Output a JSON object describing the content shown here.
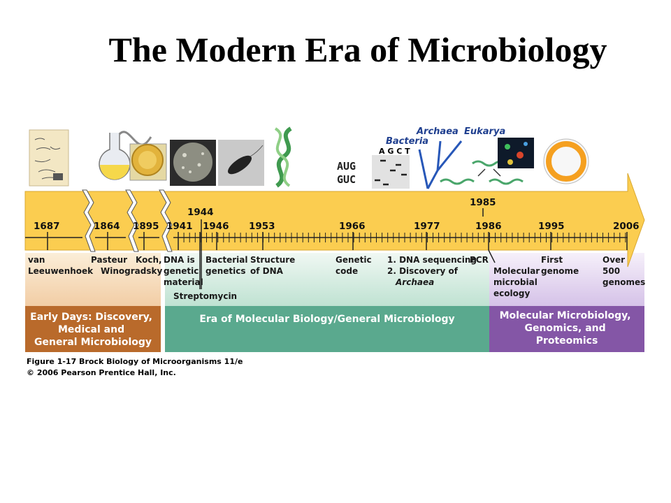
{
  "title": "The Modern Era of Microbiology",
  "colors": {
    "arrow": "#fbcd50",
    "early_era": "#b96a2b",
    "molecular_era": "#5aa98e",
    "genomics_era": "#8456a6",
    "phylo_tree": "#2757b8"
  },
  "timeline": {
    "years": [
      {
        "id": "1687",
        "label": "1687"
      },
      {
        "id": "1864",
        "label": "1864"
      },
      {
        "id": "1895",
        "label": "1895"
      },
      {
        "id": "1941",
        "label": "1941"
      },
      {
        "id": "1944",
        "label": "1944"
      },
      {
        "id": "1946",
        "label": "1946"
      },
      {
        "id": "1953",
        "label": "1953"
      },
      {
        "id": "1966",
        "label": "1966"
      },
      {
        "id": "1977",
        "label": "1977"
      },
      {
        "id": "1985",
        "label": "1985"
      },
      {
        "id": "1986",
        "label": "1986"
      },
      {
        "id": "1995",
        "label": "1995"
      },
      {
        "id": "2006",
        "label": "2006"
      }
    ],
    "events": [
      {
        "id": "van-leeuwenhoek",
        "lines": [
          "van",
          "Leeuwenhoek"
        ]
      },
      {
        "id": "pasteur-winogradsky",
        "lines": [
          "Pasteur",
          "Winogradsky"
        ]
      },
      {
        "id": "koch",
        "lines": [
          "Koch,"
        ]
      },
      {
        "id": "dna-genetic-material",
        "lines": [
          "DNA is",
          "genetic",
          "material"
        ]
      },
      {
        "id": "streptomycin",
        "lines": [
          "Streptomycin"
        ]
      },
      {
        "id": "bacterial-genetics",
        "lines": [
          "Bacterial",
          "genetics"
        ]
      },
      {
        "id": "structure-of-dna",
        "lines": [
          "Structure",
          "of DNA"
        ]
      },
      {
        "id": "genetic-code",
        "lines": [
          "Genetic",
          "code"
        ]
      },
      {
        "id": "dna-sequencing",
        "lines": [
          "1. DNA sequencing",
          "2. Discovery of"
        ],
        "italic_line": "Archaea"
      },
      {
        "id": "pcr",
        "lines": [
          "PCR"
        ]
      },
      {
        "id": "molecular-microbial-ecology",
        "lines": [
          "Molecular",
          "microbial",
          "ecology"
        ]
      },
      {
        "id": "first-genome",
        "lines": [
          "First",
          "genome"
        ]
      },
      {
        "id": "over-500-genomes",
        "lines": [
          "Over",
          "500",
          "genomes"
        ]
      }
    ]
  },
  "eras": [
    {
      "id": "early",
      "lines": [
        "Early Days: Discovery,",
        "Medical and",
        "General Microbiology"
      ]
    },
    {
      "id": "molecular",
      "lines": [
        "Era of Molecular Biology/General Microbiology"
      ]
    },
    {
      "id": "genomics",
      "lines": [
        "Molecular Microbiology,",
        "Genomics, and",
        "Proteomics"
      ]
    }
  ],
  "illustrations": {
    "codon_top": "AUG",
    "codon_bottom": "GUC",
    "gel_letters": "A G C T",
    "domains": {
      "bacteria": "Bacteria",
      "archaea": "Archaea",
      "eukarya": "Eukarya"
    }
  },
  "caption": {
    "line1": "Figure 1-17  Brock Biology of Microorganisms 11/e",
    "line2": "© 2006 Pearson Prentice Hall, Inc."
  }
}
